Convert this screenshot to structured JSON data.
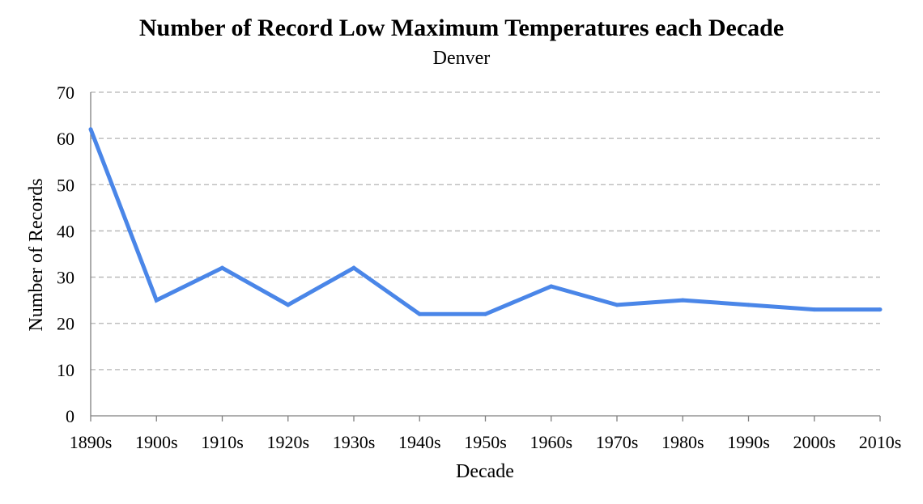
{
  "chart_data": {
    "type": "line",
    "title": "Number of Record Low Maximum Temperatures each Decade",
    "subtitle": "Denver",
    "xlabel": "Decade",
    "ylabel": "Number of Records",
    "categories": [
      "1890s",
      "1900s",
      "1910s",
      "1920s",
      "1930s",
      "1940s",
      "1950s",
      "1960s",
      "1970s",
      "1980s",
      "1990s",
      "2000s",
      "2010s"
    ],
    "series": [
      {
        "values": [
          62,
          25,
          32,
          24,
          32,
          22,
          22,
          28,
          24,
          25,
          24,
          23,
          23
        ],
        "color": "#4a86e8"
      }
    ],
    "ylim": [
      0,
      70
    ],
    "yticks": [
      0,
      10,
      20,
      30,
      40,
      50,
      60,
      70
    ],
    "grid": true,
    "grid_style": "dashed",
    "legend": "none"
  }
}
